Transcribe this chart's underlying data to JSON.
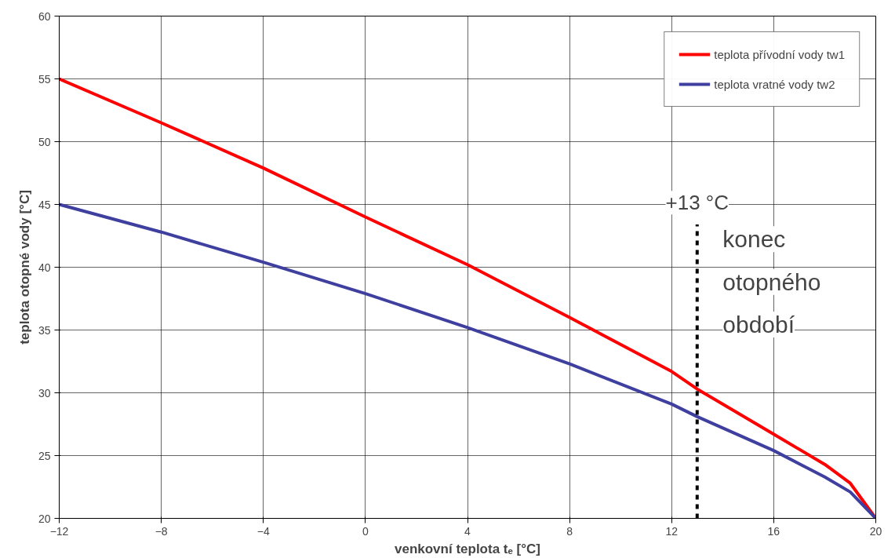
{
  "chart_data": {
    "type": "line",
    "xlabel": "venkovní teplota tₑ [°C]",
    "ylabel": "teplota otopné vody [°C]",
    "x": [
      -12,
      -8,
      -4,
      0,
      4,
      8,
      12,
      13,
      16,
      18,
      19,
      20
    ],
    "series": [
      {
        "name": "teplota přívodní vody tw1",
        "color": "#ff0000",
        "values": [
          55,
          51.5,
          47.9,
          44,
          40.2,
          36,
          31.7,
          30.3,
          26.7,
          24.3,
          22.8,
          20
        ]
      },
      {
        "name": "teplota vratné vody tw2",
        "color": "#3f3f9f",
        "values": [
          45,
          42.8,
          40.4,
          37.9,
          35.2,
          32.3,
          29.1,
          28.1,
          25.4,
          23.3,
          22.1,
          20
        ]
      }
    ],
    "xlim": [
      -12,
      20
    ],
    "ylim": [
      20,
      60
    ],
    "xticks": [
      -12,
      -8,
      -4,
      0,
      4,
      8,
      12,
      16,
      20
    ],
    "yticks": [
      20,
      25,
      30,
      35,
      40,
      45,
      50,
      55,
      60
    ],
    "grid": true,
    "legend": "top right",
    "marker": "none",
    "line_style": "solid",
    "ref_lines": [
      {
        "axis": "x",
        "value": 13,
        "label": "+13 °C",
        "color": "#000000",
        "line_style": "dashed"
      }
    ],
    "annotations": [
      "konec otopného období"
    ]
  }
}
